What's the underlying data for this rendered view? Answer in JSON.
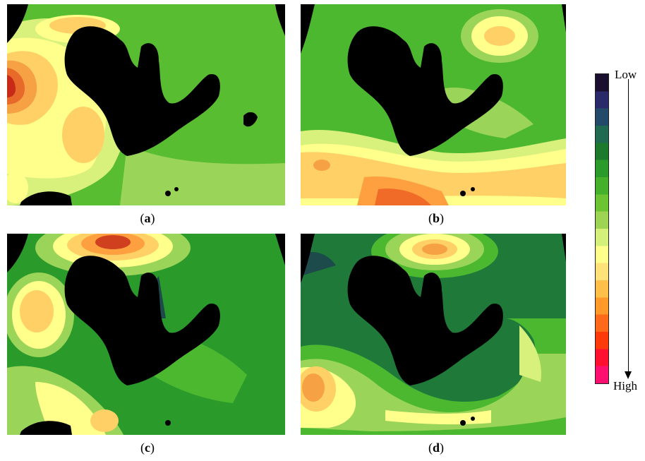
{
  "figure": {
    "panels": [
      {
        "id": "a",
        "caption_open": "(",
        "caption_letter": "a",
        "caption_close": ")"
      },
      {
        "id": "b",
        "caption_open": "(",
        "caption_letter": "b",
        "caption_close": ")"
      },
      {
        "id": "c",
        "caption_open": "(",
        "caption_letter": "c",
        "caption_close": ")"
      },
      {
        "id": "d",
        "caption_open": "(",
        "caption_letter": "d",
        "caption_close": ")"
      }
    ],
    "colorbar": {
      "top_label": "Low",
      "bottom_label": "High",
      "arrow_direction": "down",
      "colors_low_to_high": [
        "#1a0f2e",
        "#2a2a6a",
        "#244a6a",
        "#1f6a50",
        "#1d7a2c",
        "#2a9a2a",
        "#45b02a",
        "#6cc432",
        "#9ed454",
        "#d4ef7a",
        "#ffff8c",
        "#ffe27a",
        "#ffc04a",
        "#ff9a2a",
        "#ff6a1a",
        "#ff3a0a",
        "#ff1030",
        "#ff1070"
      ]
    },
    "palette": {
      "land": "#000000",
      "water_green_dark": "#1f6e3a",
      "water_green": "#4cb830",
      "water_light": "#9ad458",
      "water_pale": "#d8f07c",
      "yellow": "#ffff8c",
      "orange_light": "#ffd066",
      "orange": "#ffa040",
      "orange_red": "#f06a28",
      "red": "#d02a1a",
      "teal_deep": "#1d4a4a"
    }
  }
}
